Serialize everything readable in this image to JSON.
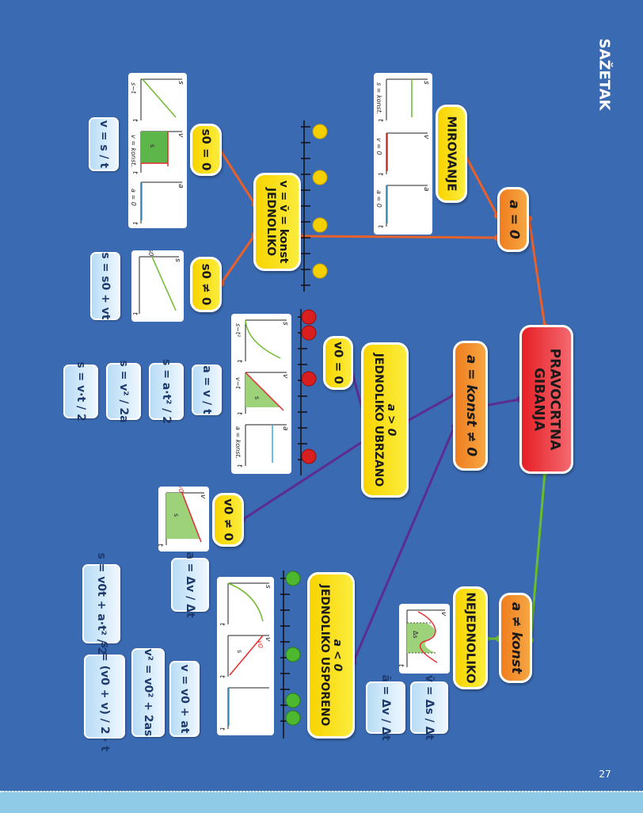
{
  "page": {
    "title": "SAŽETAK",
    "page_number": "27",
    "colors": {
      "background": "#3a6ab2",
      "node_yellow": "#f8d400",
      "node_orange": "#f0831f",
      "node_red": "#e51f26",
      "line_orange": "#e8612a",
      "line_purple": "#5c2d91",
      "line_green": "#6cbb2d"
    }
  },
  "nodes": {
    "root": "PRAVOCRTNA GIBANJA",
    "a_zero": "a = 0",
    "a_const": "a = konst ≠ 0",
    "a_not_const": "a ≠ konst",
    "mirovanje": "MIROVANJE",
    "jednoliko": {
      "line1": "v = v̄ = konst",
      "line2": "JEDNOLIKO"
    },
    "s0_zero": "s0 = 0",
    "s0_nonzero": "s0 ≠ 0",
    "ubrzano": {
      "line1": "a > 0",
      "line2": "JEDNOLIKO UBRZANO"
    },
    "v0_zero": "v0 = 0",
    "v0_nonzero": "v0 ≠ 0",
    "usporeno": {
      "line1": "a < 0",
      "line2": "JEDNOLIKO USPORENO"
    },
    "nejednoliko": "NEJEDNOLIKO"
  },
  "formulas": {
    "f_v_st": "v = s / t",
    "f_s_s0vt": "s = s0 + vt",
    "f_a_vt": "a = v / t",
    "f_s_at2": "s = a·t² / 2",
    "f_s_v2_2a": "s = v² / 2a",
    "f_s_vt_2": "s = v·t / 2",
    "f_a_dv_dt": "a = Δv / Δt",
    "f_s_v0t_at2": "s = v0t + a·t² / 2",
    "f_v2": "v² = v0² + 2as",
    "f_v_v0at": "v = v0 + at",
    "f_s_avg": "s = (v0 + v) / 2 · t",
    "f_vbar": "v̄ = Δs / Δt",
    "f_abar": "ā = Δv / Δt"
  },
  "graph_labels": {
    "g_mirovanje": {
      "s": "s",
      "v": "v",
      "a": "a",
      "t": "t",
      "c1": "s = konst.",
      "c2": "v = 0",
      "c3": "a = 0"
    },
    "g_jednoliko": {
      "s": "s",
      "v": "v",
      "a": "a",
      "t": "t",
      "c1": "s~t",
      "c2": "v = konst.",
      "c3": "a = 0",
      "area": "s"
    },
    "g_s0": {
      "s": "s",
      "t": "t",
      "s0": "s0"
    },
    "g_ubrzano": {
      "s": "s",
      "v": "v",
      "a": "a",
      "t": "t",
      "c1": "s~t²",
      "c2": "v~t",
      "c3": "a = konst.",
      "area": "s"
    },
    "g_v0": {
      "v": "v",
      "t": "t",
      "v0": "v0",
      "area": "s"
    },
    "g_usporeno": {
      "s": "s",
      "v": "v",
      "t": "t",
      "v0": "v0",
      "area": "s"
    },
    "g_nejednoliko": {
      "v": "v",
      "t": "t",
      "area": "Δs"
    }
  }
}
